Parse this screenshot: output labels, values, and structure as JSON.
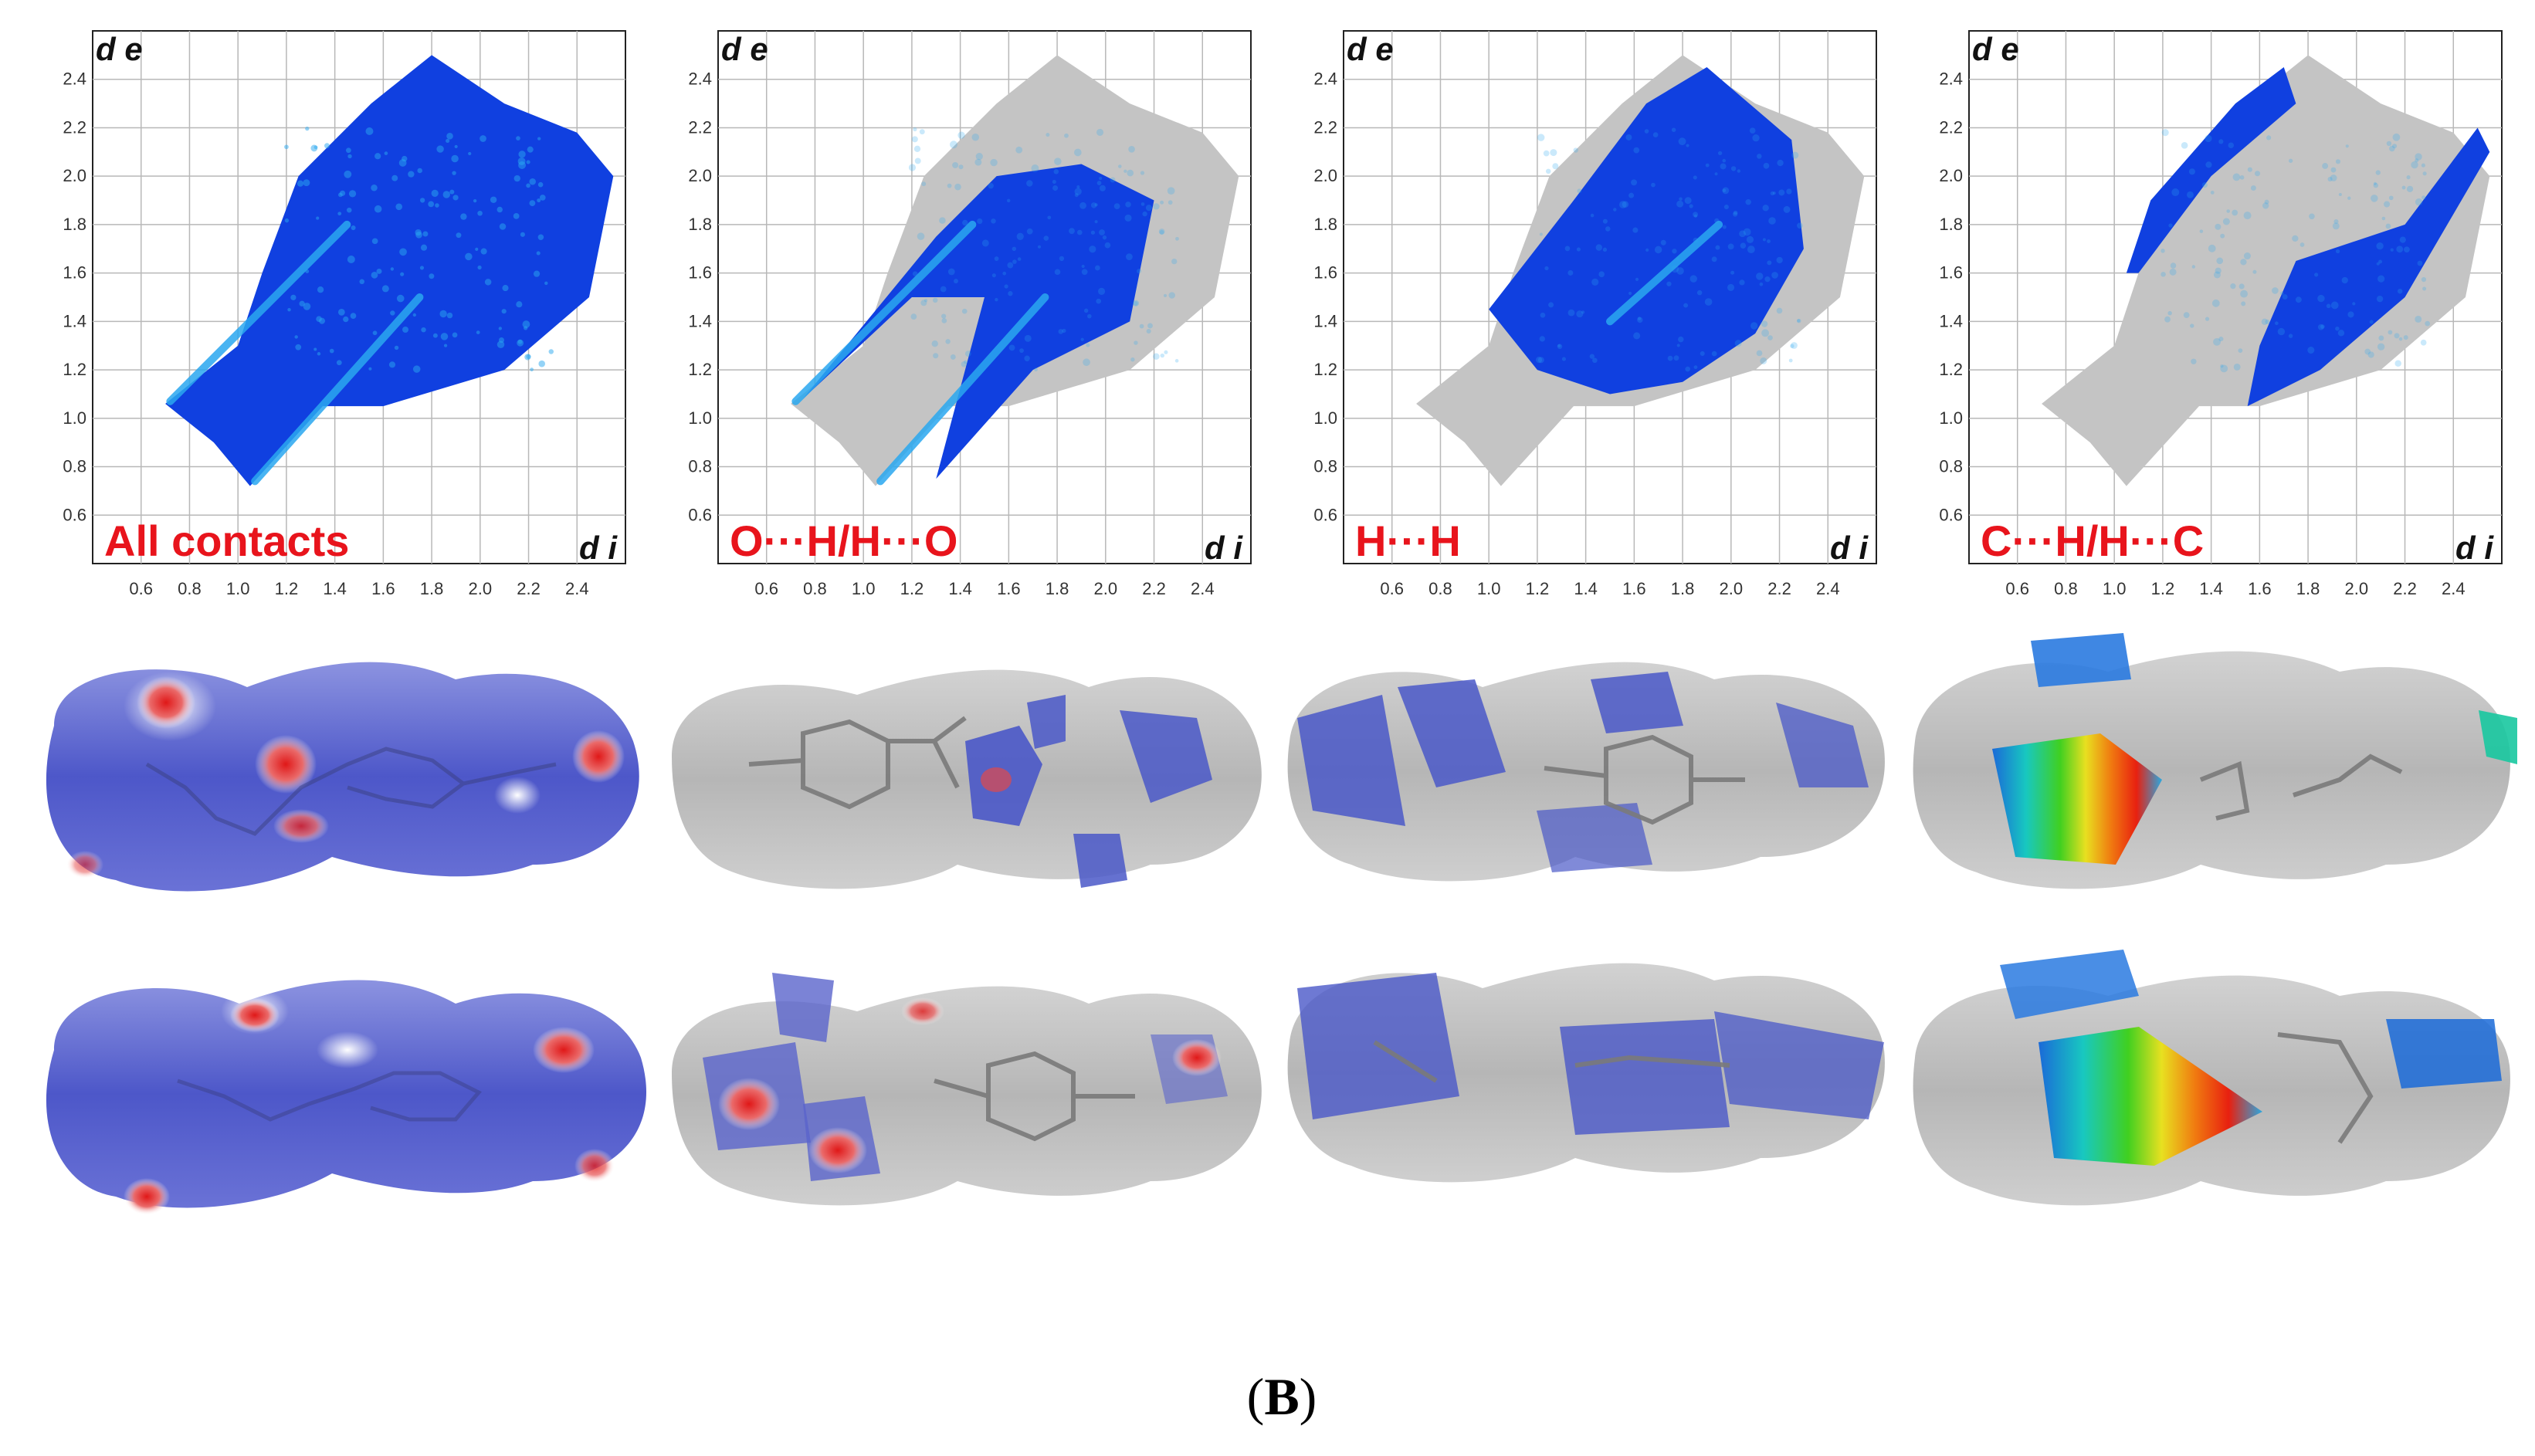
{
  "figure_label": {
    "open": "(",
    "letter": "B",
    "close": ")"
  },
  "axis": {
    "y_label": "d e",
    "x_label": "d i",
    "y_ticks": [
      "0.6",
      "0.8",
      "1.0",
      "1.2",
      "1.4",
      "1.6",
      "1.8",
      "2.0",
      "2.2",
      "2.4"
    ],
    "x_ticks": [
      "0.6",
      "0.8",
      "1.0",
      "1.2",
      "1.4",
      "1.6",
      "1.8",
      "2.0",
      "2.2",
      "2.4"
    ]
  },
  "panels": [
    {
      "title": "All contacts"
    },
    {
      "title": "O···H/H···O"
    },
    {
      "title": "H···H"
    },
    {
      "title": "C···H/H···C"
    }
  ],
  "colors": {
    "label_red": "#e8141c",
    "point_blue": "#1040e0",
    "point_cyan": "#2aa8f0",
    "grey_cloud": "#c4c4c4",
    "surface_blue": "#4a58c8",
    "surface_grey": "#b9b9b9"
  }
}
